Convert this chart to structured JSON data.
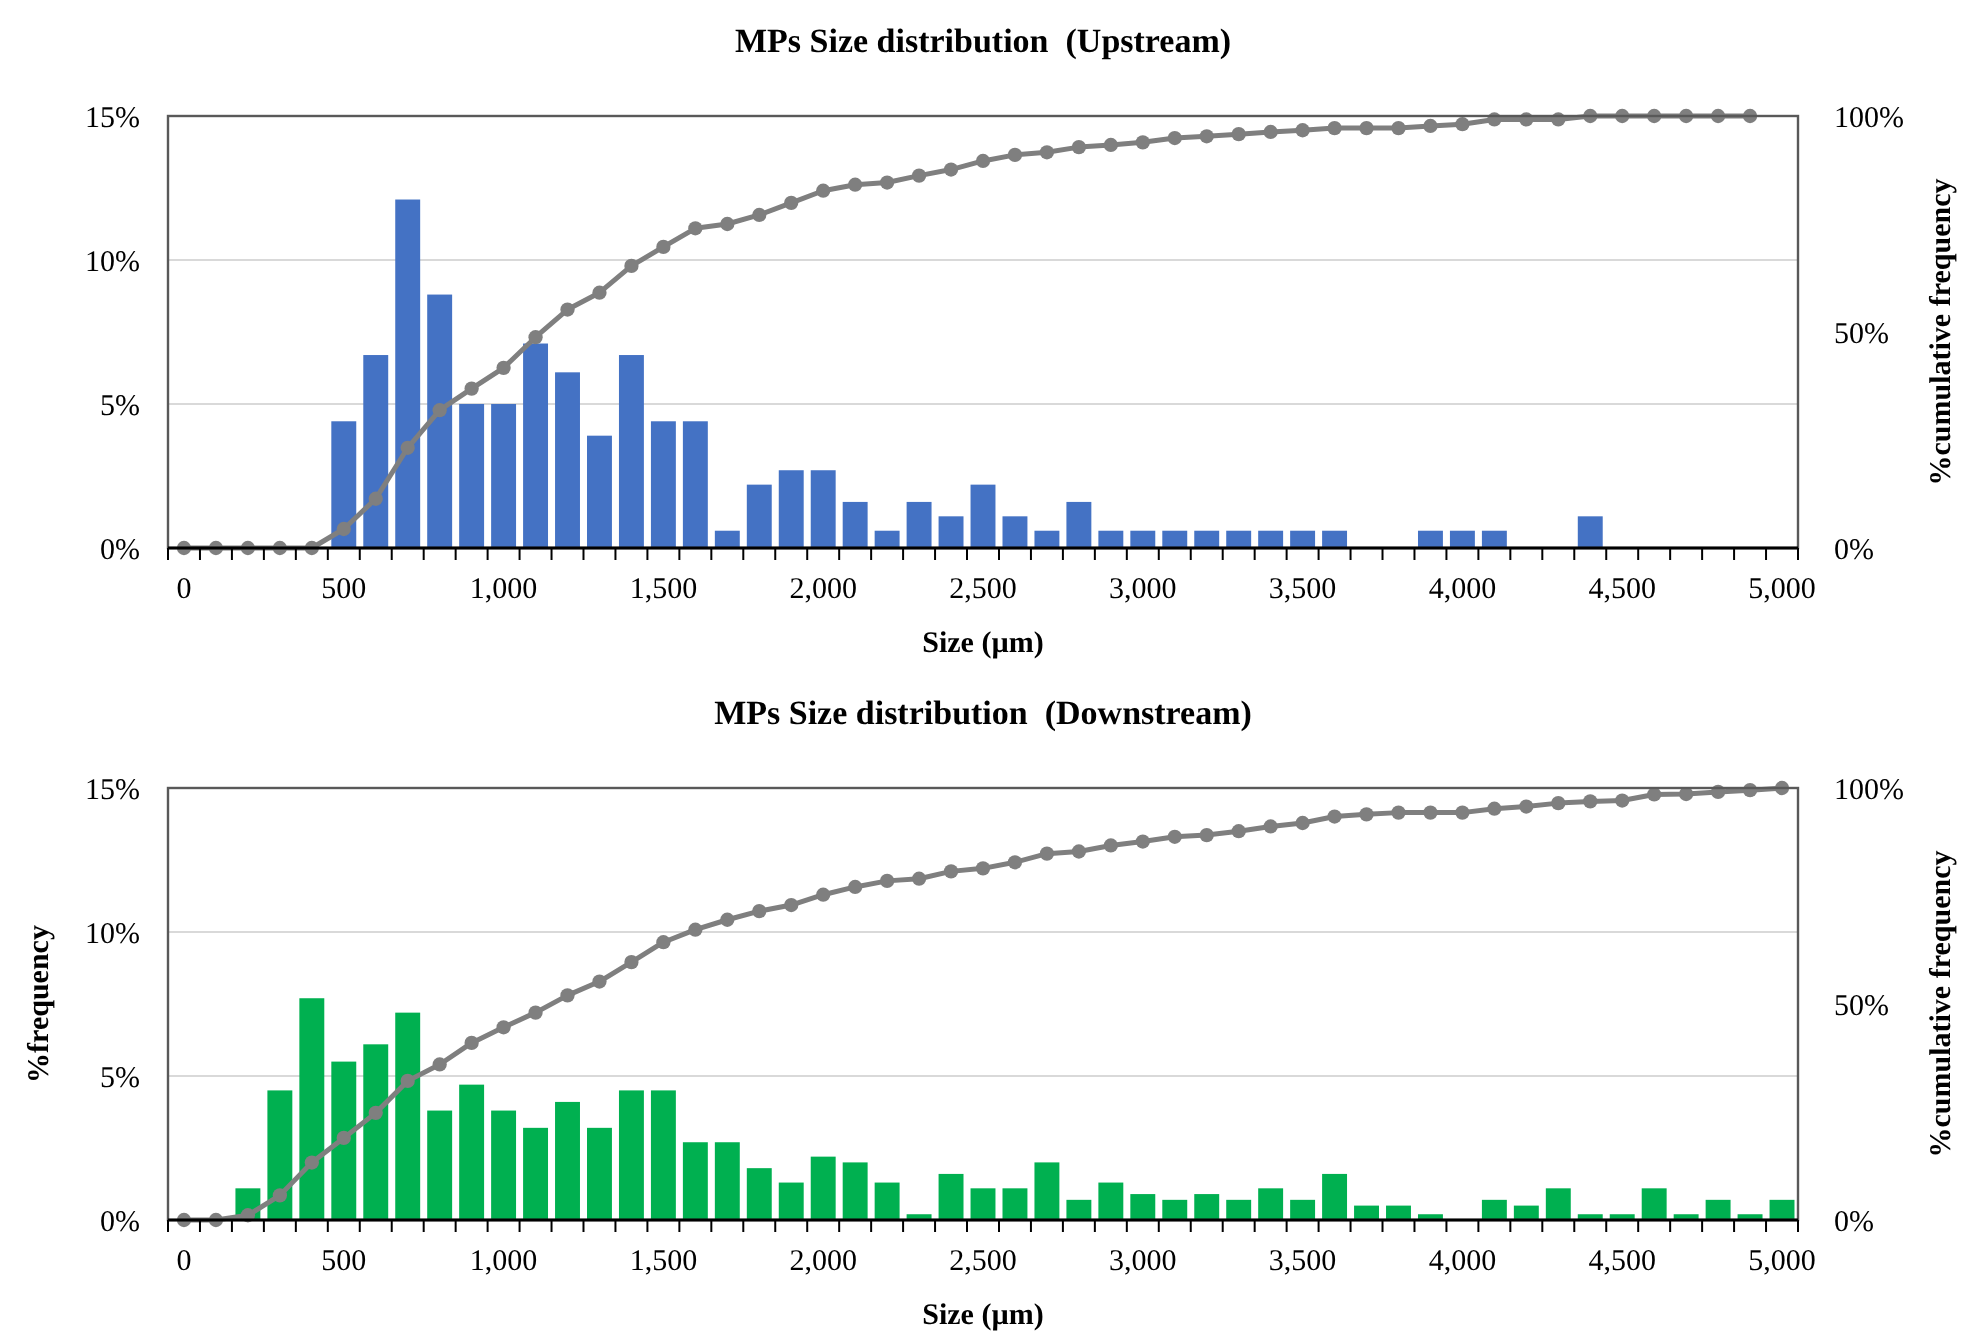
{
  "chart_data": [
    {
      "type": "bar",
      "title": "MPs Size distribution  (Upstream)",
      "xlabel": "Size (µm)",
      "y2label": "%cumulative frequency",
      "categories": [
        "0",
        null,
        null,
        null,
        null,
        "500",
        null,
        null,
        null,
        null,
        "1,000",
        null,
        null,
        null,
        null,
        "1,500",
        null,
        null,
        null,
        null,
        "2,000",
        null,
        null,
        null,
        null,
        "2,500",
        null,
        null,
        null,
        null,
        "3,000",
        null,
        null,
        null,
        null,
        "3,500",
        null,
        null,
        null,
        null,
        "4,000",
        null,
        null,
        null,
        null,
        "4,500",
        null,
        null,
        null,
        null,
        "5,000"
      ],
      "series": [
        {
          "color": "#4472c4",
          "values": [
            0,
            0,
            0,
            0,
            0,
            4.4,
            6.7,
            12.1,
            8.8,
            5.0,
            5.0,
            7.1,
            6.1,
            3.9,
            6.7,
            4.4,
            4.4,
            0.6,
            2.2,
            2.7,
            2.7,
            1.6,
            0.6,
            1.6,
            1.1,
            2.2,
            1.1,
            0.6,
            1.6,
            0.6,
            0.6,
            0.6,
            0.6,
            0.6,
            0.6,
            0.6,
            0.6,
            0,
            0,
            0.6,
            0.6,
            0.6,
            0,
            0,
            1.1,
            0,
            0,
            0,
            0,
            0,
            0
          ]
        },
        {
          "type": "line",
          "axis": "y2",
          "color": "#7f7f7f",
          "marker": "circle",
          "values": [
            0,
            0,
            0,
            0,
            0,
            4.4,
            11.4,
            23.2,
            31.9,
            36.9,
            41.7,
            48.8,
            55.2,
            59.1,
            65.3,
            69.7,
            74.0,
            75.0,
            77.1,
            79.9,
            82.7,
            84.1,
            84.6,
            86.2,
            87.6,
            89.6,
            91.0,
            91.6,
            92.8,
            93.3,
            93.9,
            94.9,
            95.3,
            95.8,
            96.3,
            96.7,
            97.2,
            97.2,
            97.2,
            97.7,
            98.1,
            99.2,
            99.2,
            99.2,
            100,
            100,
            100,
            100,
            100,
            100,
            null
          ]
        }
      ],
      "ylim": [
        0,
        15
      ],
      "yticks": [
        {
          "value": 0,
          "label": "0%"
        },
        {
          "value": 5,
          "label": "5%"
        },
        {
          "value": 10,
          "label": "10%"
        },
        {
          "value": 15,
          "label": "15%"
        }
      ],
      "y2lim": [
        0,
        100
      ],
      "y2ticks": [
        {
          "value": 0,
          "label": "0%"
        },
        {
          "value": 50,
          "label": "50%"
        },
        {
          "value": 100,
          "label": "100%"
        }
      ],
      "grid": "y"
    },
    {
      "type": "bar",
      "title": "MPs Size distribution  (Downstream)",
      "xlabel": "Size (µm)",
      "ylabel": "%frequency",
      "y2label": "%cumulative frequency",
      "categories": [
        "0",
        null,
        null,
        null,
        null,
        "500",
        null,
        null,
        null,
        null,
        "1,000",
        null,
        null,
        null,
        null,
        "1,500",
        null,
        null,
        null,
        null,
        "2,000",
        null,
        null,
        null,
        null,
        "2,500",
        null,
        null,
        null,
        null,
        "3,000",
        null,
        null,
        null,
        null,
        "3,500",
        null,
        null,
        null,
        null,
        "4,000",
        null,
        null,
        null,
        null,
        "4,500",
        null,
        null,
        null,
        null,
        "5,000"
      ],
      "series": [
        {
          "color": "#00b050",
          "values": [
            0,
            0,
            1.1,
            4.5,
            7.7,
            5.5,
            6.1,
            7.2,
            3.8,
            4.7,
            3.8,
            3.2,
            4.1,
            3.2,
            4.5,
            4.5,
            2.7,
            2.7,
            1.8,
            1.3,
            2.2,
            2.0,
            1.3,
            0.2,
            1.6,
            1.1,
            1.1,
            2.0,
            0.7,
            1.3,
            0.9,
            0.7,
            0.9,
            0.7,
            1.1,
            0.7,
            1.6,
            0.5,
            0.5,
            0.2,
            0,
            0.7,
            0.5,
            1.1,
            0.2,
            0.2,
            1.1,
            0.2,
            0.7,
            0.2,
            0.7
          ]
        },
        {
          "type": "line",
          "axis": "y2",
          "color": "#7f7f7f",
          "marker": "circle",
          "values": [
            0,
            0,
            1.1,
            5.7,
            13.3,
            19.0,
            24.8,
            32.2,
            36.0,
            41.0,
            44.6,
            48.0,
            52.0,
            55.2,
            59.7,
            64.3,
            67.2,
            69.5,
            71.5,
            72.9,
            75.3,
            77.1,
            78.5,
            79.0,
            80.7,
            81.4,
            82.8,
            84.8,
            85.3,
            86.7,
            87.6,
            88.7,
            89.1,
            90.0,
            91.1,
            91.9,
            93.4,
            93.9,
            94.3,
            94.3,
            94.3,
            95.2,
            95.7,
            96.5,
            96.9,
            97.1,
            98.5,
            98.6,
            99.1,
            99.5,
            100
          ]
        }
      ],
      "ylim": [
        0,
        15
      ],
      "yticks": [
        {
          "value": 0,
          "label": "0%"
        },
        {
          "value": 5,
          "label": "5%"
        },
        {
          "value": 10,
          "label": "10%"
        },
        {
          "value": 15,
          "label": "15%"
        }
      ],
      "y2lim": [
        0,
        100
      ],
      "y2ticks": [
        {
          "value": 0,
          "label": "0%"
        },
        {
          "value": 50,
          "label": "50%"
        },
        {
          "value": 100,
          "label": "100%"
        }
      ],
      "grid": "y"
    }
  ]
}
